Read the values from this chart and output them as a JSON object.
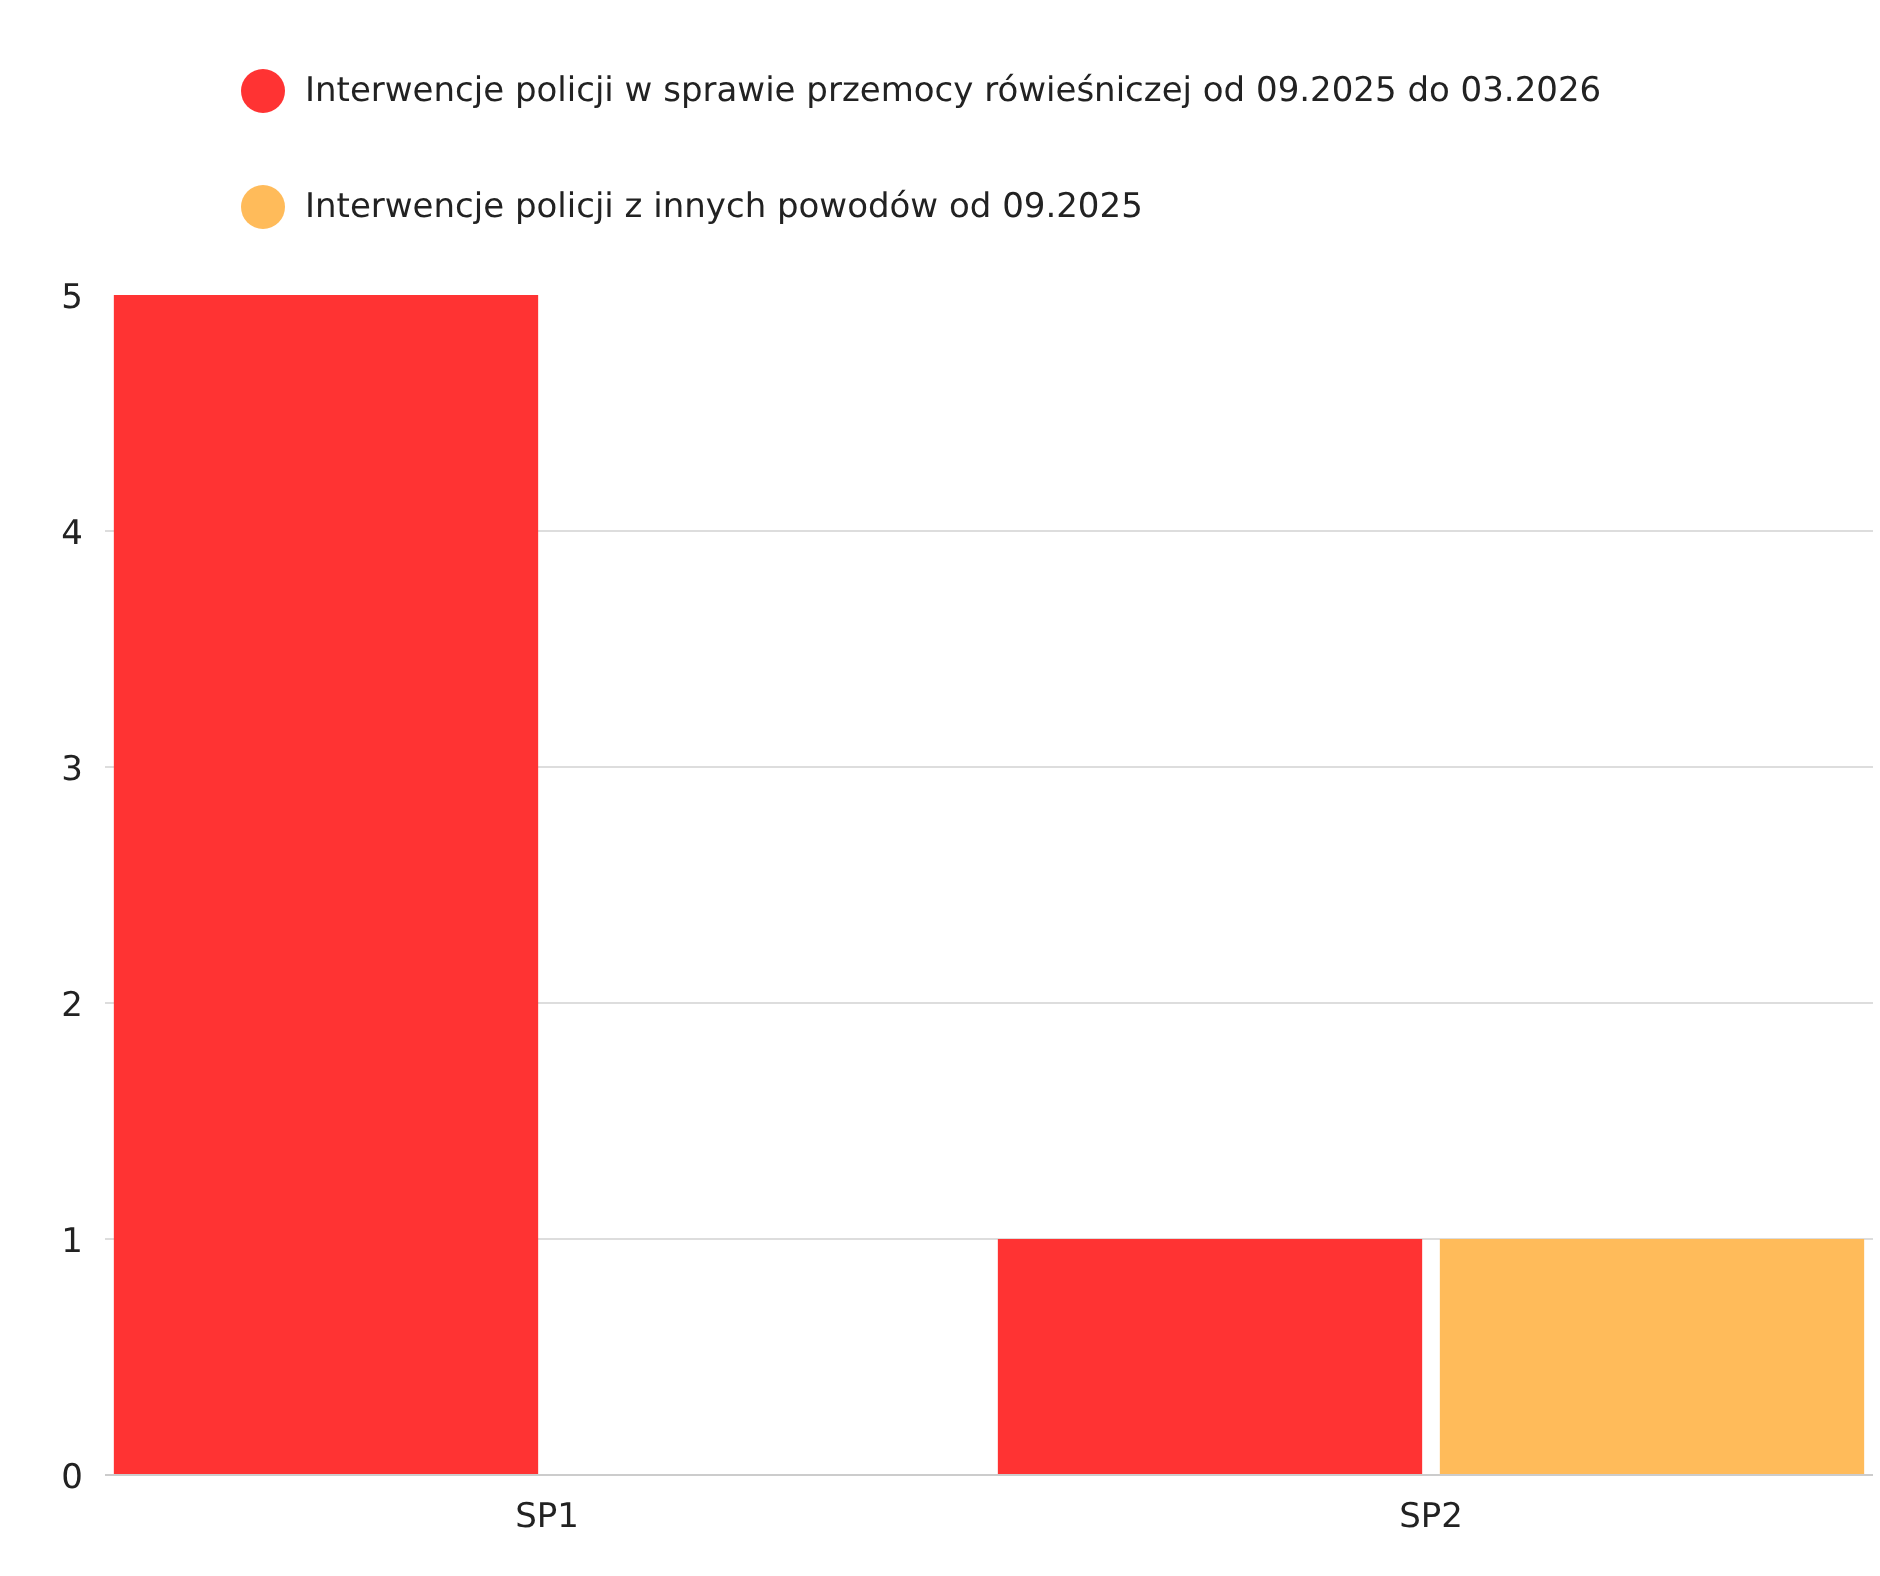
{
  "chart_data": {
    "type": "bar",
    "categories": [
      "SP1",
      "SP2"
    ],
    "series": [
      {
        "name": "Interwencje policji w sprawie przemocy rówieśniczej od 09.2025 do 03.2026",
        "color": "#ff3333",
        "values": [
          5,
          1
        ]
      },
      {
        "name": "Interwencje policji z innych powodów od 09.2025",
        "color": "#ffbb5a",
        "values": [
          0,
          1
        ]
      }
    ],
    "ylim": [
      0,
      5
    ],
    "yticks": [
      0,
      1,
      2,
      3,
      4,
      5
    ],
    "grid": "y",
    "legend": "top left"
  }
}
